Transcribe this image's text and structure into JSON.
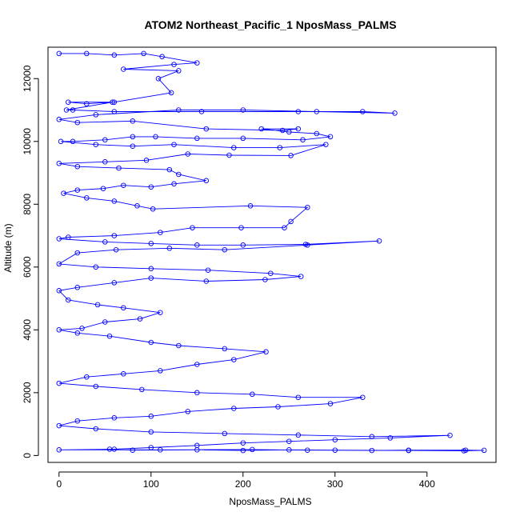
{
  "chart_data": {
    "type": "line",
    "title": "ATOM2 Northeast_Pacific_1 NposMass_PALMS",
    "xlabel": "NposMass_PALMS",
    "ylabel": "Altitude (m)",
    "xlim": [
      -12,
      475
    ],
    "ylim": [
      -220,
      13000
    ],
    "xticks": [
      0,
      100,
      200,
      300,
      400
    ],
    "yticks": [
      0,
      2000,
      4000,
      6000,
      8000,
      10000,
      12000
    ],
    "grid": false,
    "legend": "none",
    "colors": {
      "series": "#0000ff",
      "axes": "#000000",
      "background": "#ffffff"
    },
    "marker": "open-circle",
    "series": [
      {
        "points": [
          [
            0,
            12800
          ],
          [
            30,
            12800
          ],
          [
            60,
            12750
          ],
          [
            92,
            12800
          ],
          [
            112,
            12700
          ],
          [
            150,
            12500
          ],
          [
            125,
            12450
          ],
          [
            70,
            12300
          ],
          [
            130,
            12250
          ],
          [
            108,
            12000
          ],
          [
            122,
            11550
          ],
          [
            60,
            11250
          ],
          [
            10,
            11250
          ],
          [
            30,
            11200
          ],
          [
            58,
            11250
          ],
          [
            8,
            11000
          ],
          [
            15,
            11000
          ],
          [
            60,
            10950
          ],
          [
            155,
            10950
          ],
          [
            260,
            10950
          ],
          [
            330,
            10950
          ],
          [
            365,
            10900
          ],
          [
            280,
            10950
          ],
          [
            200,
            11000
          ],
          [
            130,
            11000
          ],
          [
            40,
            10850
          ],
          [
            0,
            10700
          ],
          [
            20,
            10600
          ],
          [
            80,
            10650
          ],
          [
            160,
            10400
          ],
          [
            243,
            10350
          ],
          [
            260,
            10400
          ],
          [
            220,
            10400
          ],
          [
            250,
            10300
          ],
          [
            280,
            10250
          ],
          [
            295,
            10150
          ],
          [
            265,
            10050
          ],
          [
            200,
            10100
          ],
          [
            150,
            10100
          ],
          [
            105,
            10150
          ],
          [
            80,
            10150
          ],
          [
            50,
            10050
          ],
          [
            15,
            10000
          ],
          [
            2,
            10000
          ],
          [
            40,
            9900
          ],
          [
            80,
            9850
          ],
          [
            125,
            9900
          ],
          [
            190,
            9800
          ],
          [
            240,
            9800
          ],
          [
            290,
            9900
          ],
          [
            252,
            9550
          ],
          [
            185,
            9560
          ],
          [
            140,
            9600
          ],
          [
            95,
            9400
          ],
          [
            50,
            9350
          ],
          [
            0,
            9300
          ],
          [
            20,
            9200
          ],
          [
            65,
            9150
          ],
          [
            120,
            9100
          ],
          [
            130,
            8950
          ],
          [
            160,
            8750
          ],
          [
            125,
            8650
          ],
          [
            100,
            8550
          ],
          [
            70,
            8600
          ],
          [
            48,
            8500
          ],
          [
            20,
            8450
          ],
          [
            5,
            8350
          ],
          [
            30,
            8200
          ],
          [
            60,
            8100
          ],
          [
            85,
            7950
          ],
          [
            102,
            7850
          ],
          [
            208,
            7950
          ],
          [
            270,
            7900
          ],
          [
            252,
            7450
          ],
          [
            245,
            7250
          ],
          [
            198,
            7250
          ],
          [
            145,
            7250
          ],
          [
            110,
            7100
          ],
          [
            60,
            7000
          ],
          [
            10,
            6950
          ],
          [
            0,
            6900
          ],
          [
            50,
            6800
          ],
          [
            100,
            6750
          ],
          [
            150,
            6700
          ],
          [
            200,
            6700
          ],
          [
            268,
            6720
          ],
          [
            348,
            6830
          ],
          [
            270,
            6700
          ],
          [
            180,
            6550
          ],
          [
            120,
            6600
          ],
          [
            62,
            6550
          ],
          [
            20,
            6450
          ],
          [
            0,
            6100
          ],
          [
            40,
            6000
          ],
          [
            100,
            5950
          ],
          [
            162,
            5900
          ],
          [
            230,
            5800
          ],
          [
            263,
            5700
          ],
          [
            224,
            5600
          ],
          [
            160,
            5550
          ],
          [
            100,
            5650
          ],
          [
            60,
            5500
          ],
          [
            20,
            5350
          ],
          [
            0,
            5250
          ],
          [
            10,
            4950
          ],
          [
            42,
            4800
          ],
          [
            70,
            4700
          ],
          [
            110,
            4550
          ],
          [
            88,
            4350
          ],
          [
            50,
            4250
          ],
          [
            25,
            4050
          ],
          [
            0,
            4000
          ],
          [
            20,
            3900
          ],
          [
            55,
            3800
          ],
          [
            100,
            3600
          ],
          [
            130,
            3500
          ],
          [
            180,
            3400
          ],
          [
            225,
            3300
          ],
          [
            190,
            3050
          ],
          [
            150,
            2900
          ],
          [
            110,
            2700
          ],
          [
            70,
            2600
          ],
          [
            30,
            2500
          ],
          [
            0,
            2300
          ],
          [
            40,
            2200
          ],
          [
            90,
            2100
          ],
          [
            150,
            2000
          ],
          [
            210,
            1950
          ],
          [
            260,
            1850
          ],
          [
            330,
            1850
          ],
          [
            295,
            1650
          ],
          [
            238,
            1550
          ],
          [
            190,
            1500
          ],
          [
            140,
            1400
          ],
          [
            100,
            1250
          ],
          [
            60,
            1200
          ],
          [
            20,
            1100
          ],
          [
            0,
            950
          ],
          [
            40,
            850
          ],
          [
            100,
            750
          ],
          [
            180,
            700
          ],
          [
            260,
            650
          ],
          [
            340,
            600
          ],
          [
            425,
            640
          ],
          [
            360,
            560
          ],
          [
            300,
            500
          ],
          [
            250,
            450
          ],
          [
            200,
            400
          ],
          [
            150,
            320
          ],
          [
            100,
            250
          ],
          [
            60,
            200
          ],
          [
            0,
            180
          ],
          [
            110,
            180
          ],
          [
            210,
            190
          ],
          [
            270,
            170
          ],
          [
            340,
            160
          ],
          [
            380,
            170
          ],
          [
            442,
            170
          ],
          [
            462,
            165
          ],
          [
            440,
            150
          ],
          [
            380,
            160
          ],
          [
            300,
            170
          ],
          [
            250,
            180
          ],
          [
            200,
            160
          ],
          [
            150,
            180
          ],
          [
            80,
            170
          ],
          [
            55,
            200
          ]
        ]
      }
    ]
  }
}
